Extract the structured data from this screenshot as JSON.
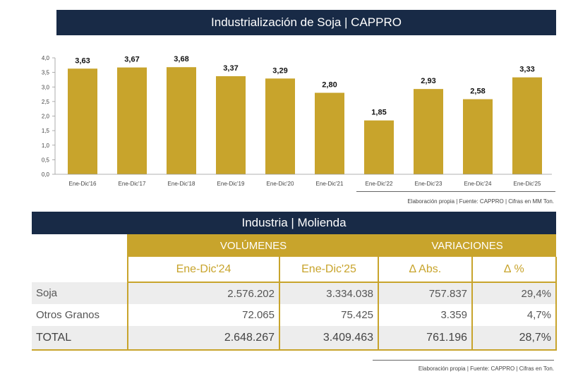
{
  "chart_banner": {
    "title": "Industrialización de Soja | CAPPRO"
  },
  "chart_data": {
    "type": "bar",
    "title": "Industrialización de Soja | CAPPRO",
    "categories": [
      "Ene-Dic'16",
      "Ene-Dic'17",
      "Ene-Dic'18",
      "Ene-Dic'19",
      "Ene-Dic'20",
      "Ene-Dic'21",
      "Ene-Dic'22",
      "Ene-Dic'23",
      "Ene-Dic'24",
      "Ene-Dic'25"
    ],
    "values": [
      3.63,
      3.67,
      3.68,
      3.37,
      3.29,
      2.8,
      1.85,
      2.93,
      2.58,
      3.33
    ],
    "value_labels": [
      "3,63",
      "3,67",
      "3,68",
      "3,37",
      "3,29",
      "2,80",
      "1,85",
      "2,93",
      "2,58",
      "3,33"
    ],
    "yticks": [
      "0,0",
      "0,5",
      "1,0",
      "1,5",
      "2,0",
      "2,5",
      "3,0",
      "3,5",
      "4,0"
    ],
    "ylim": [
      0,
      4
    ],
    "bar_color": "#c8a42c",
    "xlabel": "",
    "ylabel": ""
  },
  "chart_source": "Elaboración propia | Fuente: CAPPRO | Cifras en MM Ton.",
  "table": {
    "banner": "Industria | Molienda",
    "group_volumes": "VOLÚMENES",
    "group_variations": "VARIACIONES",
    "columns": [
      "Ene-Dic'24",
      "Ene-Dic'25",
      "∆ Abs.",
      "∆ %"
    ],
    "rows": [
      {
        "label": "Soja",
        "cells": [
          "2.576.202",
          "3.334.038",
          "757.837",
          "29,4%"
        ]
      },
      {
        "label": "Otros Granos",
        "cells": [
          "72.065",
          "75.425",
          "3.359",
          "4,7%"
        ]
      },
      {
        "label": "TOTAL",
        "cells": [
          "2.648.267",
          "3.409.463",
          "761.196",
          "28,7%"
        ]
      }
    ],
    "source": "Elaboración propia | Fuente: CAPPRO | Cifras en Ton."
  },
  "colors": {
    "navy": "#182a46",
    "gold": "#c8a42c",
    "shade": "#ededed"
  }
}
